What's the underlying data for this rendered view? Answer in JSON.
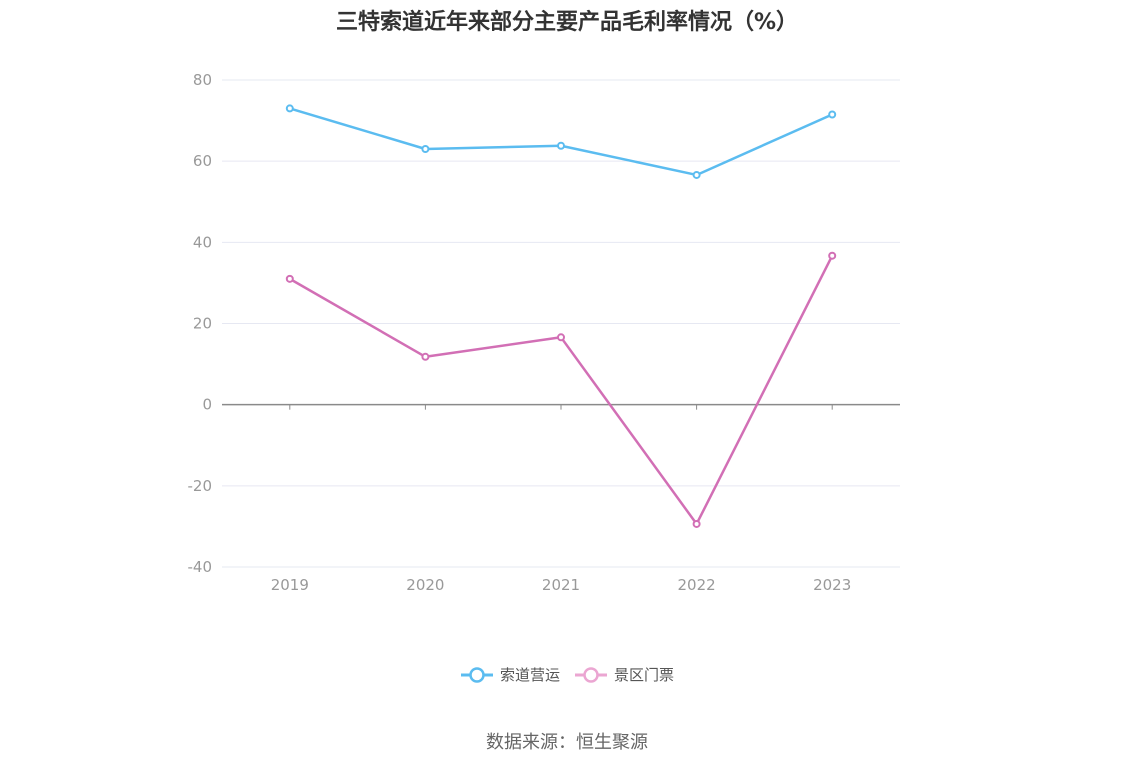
{
  "chart_data": {
    "type": "line",
    "title": "三特索道近年来部分主要产品毛利率情况（%）",
    "categories": [
      "2019",
      "2020",
      "2021",
      "2022",
      "2023"
    ],
    "series": [
      {
        "name": "索道营运",
        "values": [
          73.0,
          63.0,
          63.8,
          56.6,
          71.5
        ],
        "color": "#5bbcf0"
      },
      {
        "name": "景区门票",
        "values": [
          31.0,
          11.8,
          16.6,
          -29.4,
          36.7
        ],
        "color": "#d26fb5"
      }
    ],
    "ylim": [
      -40,
      80
    ],
    "yticks": [
      80,
      60,
      40,
      20,
      0,
      -20,
      -40
    ],
    "grid": true,
    "legend_position": "bottom-center",
    "source": "数据来源：恒生聚源"
  }
}
